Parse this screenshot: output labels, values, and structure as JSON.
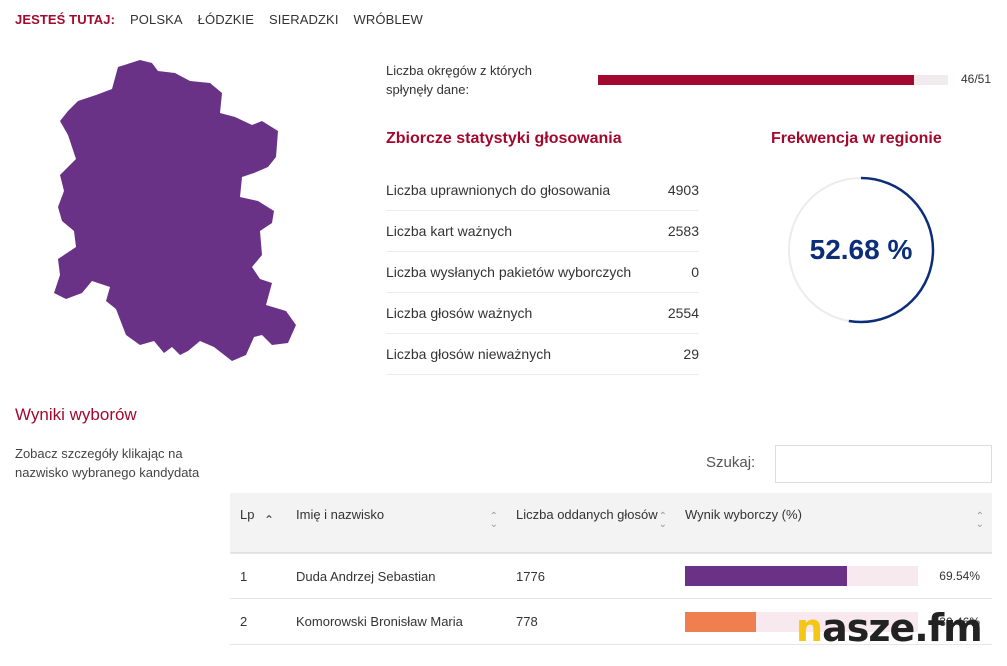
{
  "breadcrumb": {
    "here_label": "JESTEŚ TUTAJ:",
    "items": [
      "POLSKA",
      "ŁÓDZKIE",
      "SIERADZKI",
      "WRÓBLEW"
    ]
  },
  "map": {
    "fill_color": "#6a3287"
  },
  "progress": {
    "label": "Liczba okręgów z których spłynęły dane:",
    "done": 46,
    "total": 51,
    "text": "46/51",
    "fill_color": "#a3092e"
  },
  "stats": {
    "title": "Zbiorcze statystyki głosowania",
    "rows": [
      {
        "label": "Liczba uprawnionych do głosowania",
        "value": "4903"
      },
      {
        "label": "Liczba kart ważnych",
        "value": "2583"
      },
      {
        "label": "Liczba wysłanych pakietów wyborczych",
        "value": "0"
      },
      {
        "label": "Liczba głosów ważnych",
        "value": "2554"
      },
      {
        "label": "Liczba głosów nieważnych",
        "value": "29"
      }
    ]
  },
  "turnout": {
    "title": "Frekwencja w regionie",
    "value_text": "52.68 %",
    "value": 52.68,
    "ring_color": "#0b2d7a"
  },
  "results": {
    "title": "Wyniki wyborów",
    "hint": "Zobacz szczegóły klikając na nazwisko wybranego kandydata",
    "search_label": "Szukaj:",
    "search_value": "",
    "columns": [
      "Lp",
      "Imię i nazwisko",
      "Liczba oddanych głosów",
      "Wynik wyborczy (%)"
    ],
    "rows": [
      {
        "lp": "1",
        "name": "Duda Andrzej Sebastian",
        "votes": "1776",
        "pct_text": "69.54%",
        "pct": 69.54,
        "color": "#6a3287"
      },
      {
        "lp": "2",
        "name": "Komorowski Bronisław Maria",
        "votes": "778",
        "pct_text": "30.46%",
        "pct": 30.46,
        "color": "#f07f50"
      }
    ]
  },
  "logo": {
    "first_letter": "n",
    "rest": "asze.fm"
  }
}
